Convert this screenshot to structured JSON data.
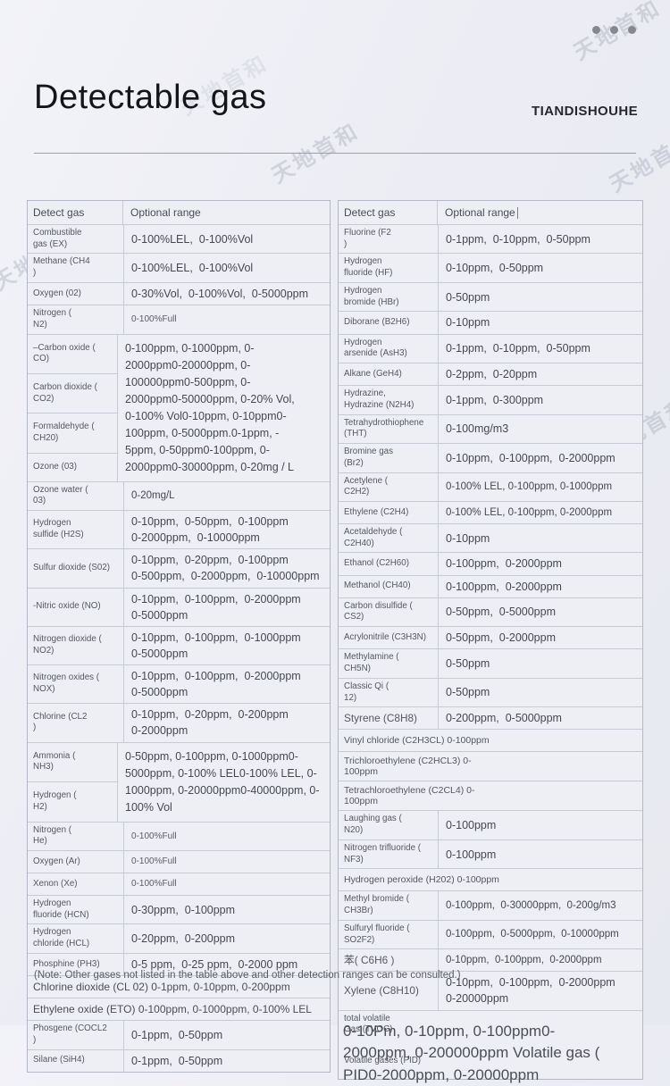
{
  "page": {
    "title": "Detectable gas",
    "brand": "TIANDISHOUHE",
    "note": "(Note: Other gases not listed in the table above and other detection ranges can be consulted.)",
    "watermark": "天地首和",
    "colors": {
      "background": "#ecedf4",
      "table_bg": "#edeff5",
      "border": "#b3b8c4",
      "text": "#45484f"
    }
  },
  "left_table": {
    "headers": {
      "gas": "Detect gas",
      "range": "Optional range"
    },
    "rows": [
      {
        "type": "normal",
        "name": "Combustible\ngas (EX)",
        "range": "0-100%LEL,  0-100%Vol",
        "size": "lg"
      },
      {
        "type": "normal",
        "name": "Methane (CH4\n)",
        "range": "0-100%LEL,  0-100%Vol",
        "size": "lg"
      },
      {
        "type": "normal",
        "name": "Oxygen (02)",
        "range": "0-30%Vol,  0-100%Vol,  0-5000ppm",
        "size": "lg"
      },
      {
        "type": "normal",
        "name": "Nitrogen (\nN2)",
        "range": "0-100%Full",
        "size": "sm"
      },
      {
        "type": "group",
        "names": [
          "–Carbon oxide (\nCO)",
          "Carbon dioxide (\nCO2)",
          "Formaldehyde (\nCH20)",
          "Ozone (03)"
        ],
        "range": "0-100ppm, 0-1000ppm, 0-\n2000ppm0-20000ppm, 0-\n100000ppm0-500ppm, 0-\n2000ppm0-50000ppm, 0-20% Vol,\n0-100% Vol0-10ppm, 0-10ppm0-\n100ppm, 0-5000ppm.0-1ppm, -\n5ppm, 0-50ppm0-100ppm, 0-\n2000ppm0-30000ppm, 0-20mg / L"
      },
      {
        "type": "normal",
        "name": "Ozone water (\n03)",
        "range": "0-20mg/L",
        "size": "md"
      },
      {
        "type": "normal",
        "name": "Hydrogen\nsulfide (H2S)",
        "range": "0-10ppm,  0-50ppm,  0-100ppm\n0-2000ppm,  0-10000ppm",
        "size": "lg"
      },
      {
        "type": "normal",
        "name": "Sulfur dioxide (S02)",
        "range": "0-10ppm,  0-20ppm,  0-100ppm\n0-500ppm,  0-2000ppm,  0-10000ppm",
        "size": "lg"
      },
      {
        "type": "normal",
        "name": "-Nitric oxide (NO)",
        "range": "0-10ppm,  0-100ppm,  0-2000ppm\n0-5000ppm",
        "size": "lg"
      },
      {
        "type": "normal",
        "name": "Nitrogen dioxide (\nNO2)",
        "range": "0-10ppm,  0-100ppm,  0-1000ppm\n0-5000ppm",
        "size": "lg"
      },
      {
        "type": "normal",
        "name": "Nitrogen oxides (\nNOX)",
        "range": "0-10ppm,  0-100ppm,  0-2000ppm\n0-5000ppm",
        "size": "lg"
      },
      {
        "type": "normal",
        "name": "Chlorine (CL2\n)",
        "range": "0-10ppm,  0-20ppm,  0-200ppm\n0-2000ppm",
        "size": "lg"
      },
      {
        "type": "group",
        "names": [
          "Ammonia (\nNH3)",
          "Hydrogen (\nH2)"
        ],
        "range": "0-50ppm, 0-100ppm, 0-1000ppm0-\n5000ppm, 0-100% LEL0-100% LEL, 0-\n1000ppm, 0-20000ppm0-40000ppm, 0-\n100% Vol"
      },
      {
        "type": "normal",
        "name": "Nitrogen (\nHe)",
        "range": "0-100%Full",
        "size": "sm"
      },
      {
        "type": "normal",
        "name": "Oxygen (Ar)",
        "range": "0-100%Full",
        "size": "sm"
      },
      {
        "type": "normal",
        "name": "Xenon (Xe)",
        "range": "0-100%Full",
        "size": "sm"
      },
      {
        "type": "normal",
        "name": "Hydrogen\nfluoride (HCN)",
        "range": "0-30ppm,  0-100ppm",
        "size": "lg"
      },
      {
        "type": "normal",
        "name": "Hydrogen\nchloride (HCL)",
        "range": "0-20ppm,  0-200ppm",
        "size": "lg"
      },
      {
        "type": "normal",
        "name": "Phosphine (PH3)",
        "range": "0-5 ppm,  0-25 ppm,  0-2000 ppm",
        "size": "lg"
      },
      {
        "type": "full",
        "text": "Chlorine dioxide (CL 02) 0-1ppm, 0-10ppm, 0-200ppm"
      },
      {
        "type": "full",
        "text": "Ethylene oxide (ETO) 0-100ppm, 0-1000ppm, 0-100% LEL"
      },
      {
        "type": "normal",
        "name": "Phosgene (COCL2\n)",
        "range": "0-1ppm,  0-50ppm",
        "size": "lg"
      },
      {
        "type": "normal",
        "name": "Silane (SiH4)",
        "range": "0-1ppm,  0-50ppm",
        "size": "lg"
      }
    ]
  },
  "right_table": {
    "headers": {
      "gas": "Detect gas",
      "range": "Optional range"
    },
    "rows": [
      {
        "type": "normal",
        "name": "Fluorine (F2\n)",
        "range": "0-1ppm,  0-10ppm,  0-50ppm",
        "size": "lg"
      },
      {
        "type": "normal",
        "name": "Hydrogen\nfluoride (HF)",
        "range": "0-10ppm,  0-50ppm",
        "size": "lg"
      },
      {
        "type": "normal",
        "name": "Hydrogen\nbromide (HBr)",
        "range": "0-50ppm",
        "size": "lg"
      },
      {
        "type": "normal",
        "name": "Diborane (B2H6)",
        "range": "0-10ppm",
        "size": "lg"
      },
      {
        "type": "normal",
        "name": "Hydrogen\narsenide (AsH3)",
        "range": "0-1ppm,  0-10ppm,  0-50ppm",
        "size": "lg"
      },
      {
        "type": "normal",
        "name": "Alkane (GeH4)",
        "range": "0-2ppm,  0-20ppm",
        "size": "lg"
      },
      {
        "type": "normal",
        "name": "Hydrazine,\nHydrazine (N2H4)",
        "range": "0-1ppm,  0-300ppm",
        "size": "lg"
      },
      {
        "type": "normal",
        "name": "Tetrahydrothiophene\n(THT)",
        "range": "0-100mg/m3",
        "size": "lg"
      },
      {
        "type": "normal",
        "name": "Bromine gas\n(Br2)",
        "range": "0-10ppm,  0-100ppm,  0-2000ppm",
        "size": "lg"
      },
      {
        "type": "normal",
        "name": "Acetylene (\nC2H2)",
        "range": "0-100% LEL, 0-100ppm, 0-1000ppm",
        "size": "md"
      },
      {
        "type": "normal",
        "name": "Ethylene (C2H4)",
        "range": "0-100% LEL, 0-100ppm, 0-2000ppm",
        "size": "md"
      },
      {
        "type": "normal",
        "name": "Acetaldehyde (\nC2H40)",
        "range": "0-10ppm",
        "size": "lg"
      },
      {
        "type": "normal",
        "name": "Ethanol (C2H60)",
        "range": "0-100ppm,  0-2000ppm",
        "size": "lg"
      },
      {
        "type": "normal",
        "name": "Methanol (CH40)",
        "range": "0-100ppm,  0-2000ppm",
        "size": "lg"
      },
      {
        "type": "normal",
        "name": "Carbon disulfide (\nCS2)",
        "range": "0-50ppm,  0-5000ppm",
        "size": "lg"
      },
      {
        "type": "normal",
        "name": "Acrylonitrile (C3H3N)",
        "range": "0-50ppm,  0-2000ppm",
        "size": "lg"
      },
      {
        "type": "normal",
        "name": "Methylamine (\nCH5N)",
        "range": "0-50ppm",
        "size": "lg"
      },
      {
        "type": "normal",
        "name": "Classic Qi (\n12)",
        "range": "0-50ppm",
        "size": "lg"
      },
      {
        "type": "normal",
        "name": "Styrene (C8H8)",
        "nameSize": "lg",
        "range": "0-200ppm,  0-5000ppm",
        "size": "lg"
      },
      {
        "type": "full",
        "text": "Vinyl chloride (C2H3CL) 0-100ppm"
      },
      {
        "type": "full",
        "text": "Trichloroethylene (C2HCL3) 0-\n100ppm"
      },
      {
        "type": "full",
        "text": "Tetrachloroethylene (C2CL4) 0-\n100ppm"
      },
      {
        "type": "normal",
        "name": "Laughing gas (\nN20)",
        "range": "0-100ppm",
        "size": "lg"
      },
      {
        "type": "normal",
        "name": "Nitrogen trifluoride (\nNF3)",
        "range": "0-100ppm",
        "size": "lg"
      },
      {
        "type": "full",
        "text": "Hydrogen peroxide (H202) 0-100ppm"
      },
      {
        "type": "normal",
        "name": "Methyl bromide (\nCH3Br)",
        "range": "0-100ppm,  0-30000ppm,  0-200g/m3",
        "size": "md"
      },
      {
        "type": "normal",
        "name": "Sulfuryl fluoride (\nSO2F2)",
        "range": "0-100ppm,  0-5000ppm,  0-10000ppm",
        "size": "md"
      },
      {
        "type": "normal",
        "name": "苯( C6H6 )",
        "nameSize": "lg",
        "range": "0-10ppm,  0-100ppm,  0-2000ppm",
        "size": "md"
      },
      {
        "type": "normal",
        "name": "Xylene (C8H10)",
        "nameSize": "lg",
        "range": "0-10ppm,  0-100ppm,  0-2000ppm\n0-20000ppm",
        "size": "lg"
      },
      {
        "type": "overlap",
        "labels": [
          "total volatile\nGas (TVOC)",
          "Volatile gases (PID)"
        ],
        "overlay": "0-10Pm, 0-10ppm, 0-100ppm0-\n2000ppm, 0-200000ppm Volatile gas (\nPID0-2000ppm, 0-20000ppm"
      }
    ]
  }
}
